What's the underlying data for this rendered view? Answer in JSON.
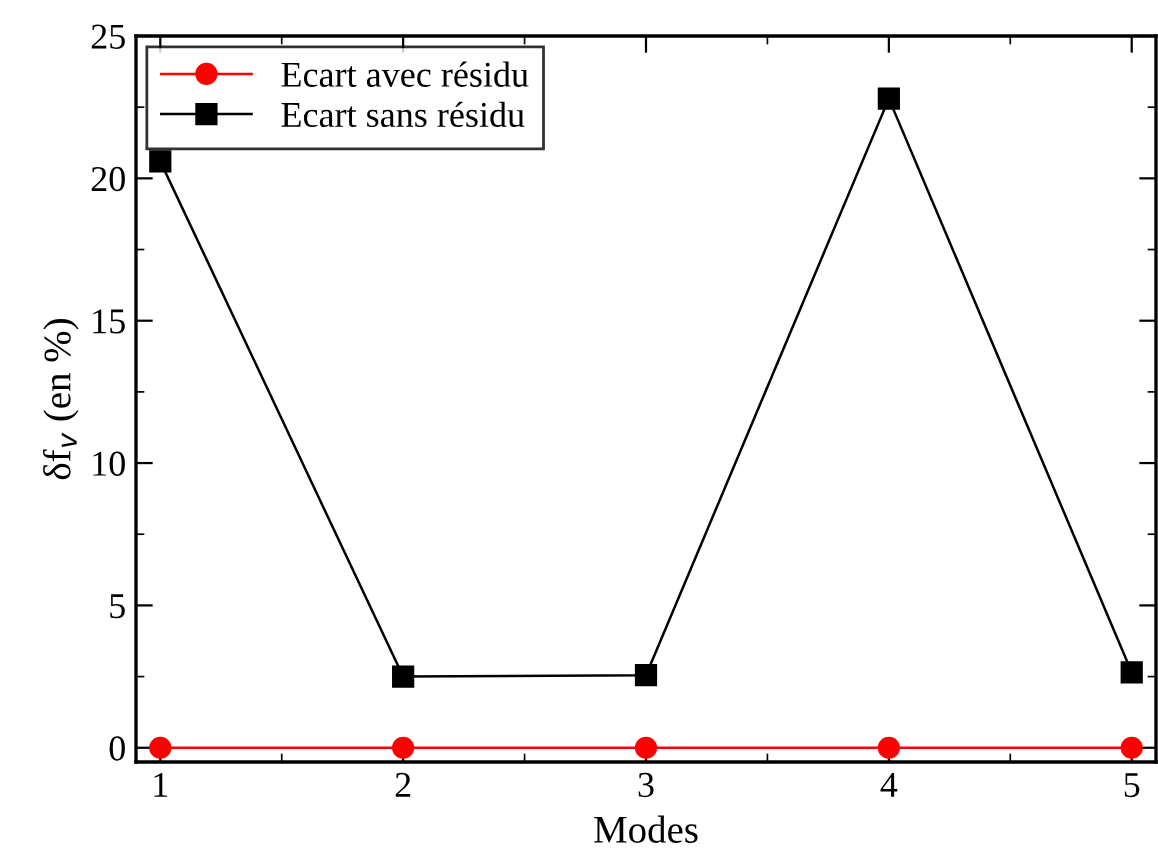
{
  "chart_data": {
    "type": "line",
    "xlabel": "Modes",
    "ylabel": "δf$_{v}$ (en %)",
    "x": [
      1,
      2,
      3,
      4,
      5
    ],
    "series": [
      {
        "name": "Ecart avec résidu",
        "color": "#ff0000",
        "marker": "circle",
        "values": [
          0,
          0,
          0,
          0,
          0
        ]
      },
      {
        "name": "Ecart sans résidu",
        "color": "#000000",
        "marker": "square",
        "values": [
          20.6,
          2.5,
          2.55,
          22.8,
          2.65
        ]
      }
    ],
    "xlim": [
      0.9,
      5.1
    ],
    "xticks": [
      1,
      2,
      3,
      4,
      5
    ],
    "ylim": [
      -0.5,
      25
    ],
    "yticks": [
      0,
      5,
      10,
      15,
      20,
      25
    ],
    "grid": false,
    "legend": "top left",
    "line_style": "solid"
  }
}
